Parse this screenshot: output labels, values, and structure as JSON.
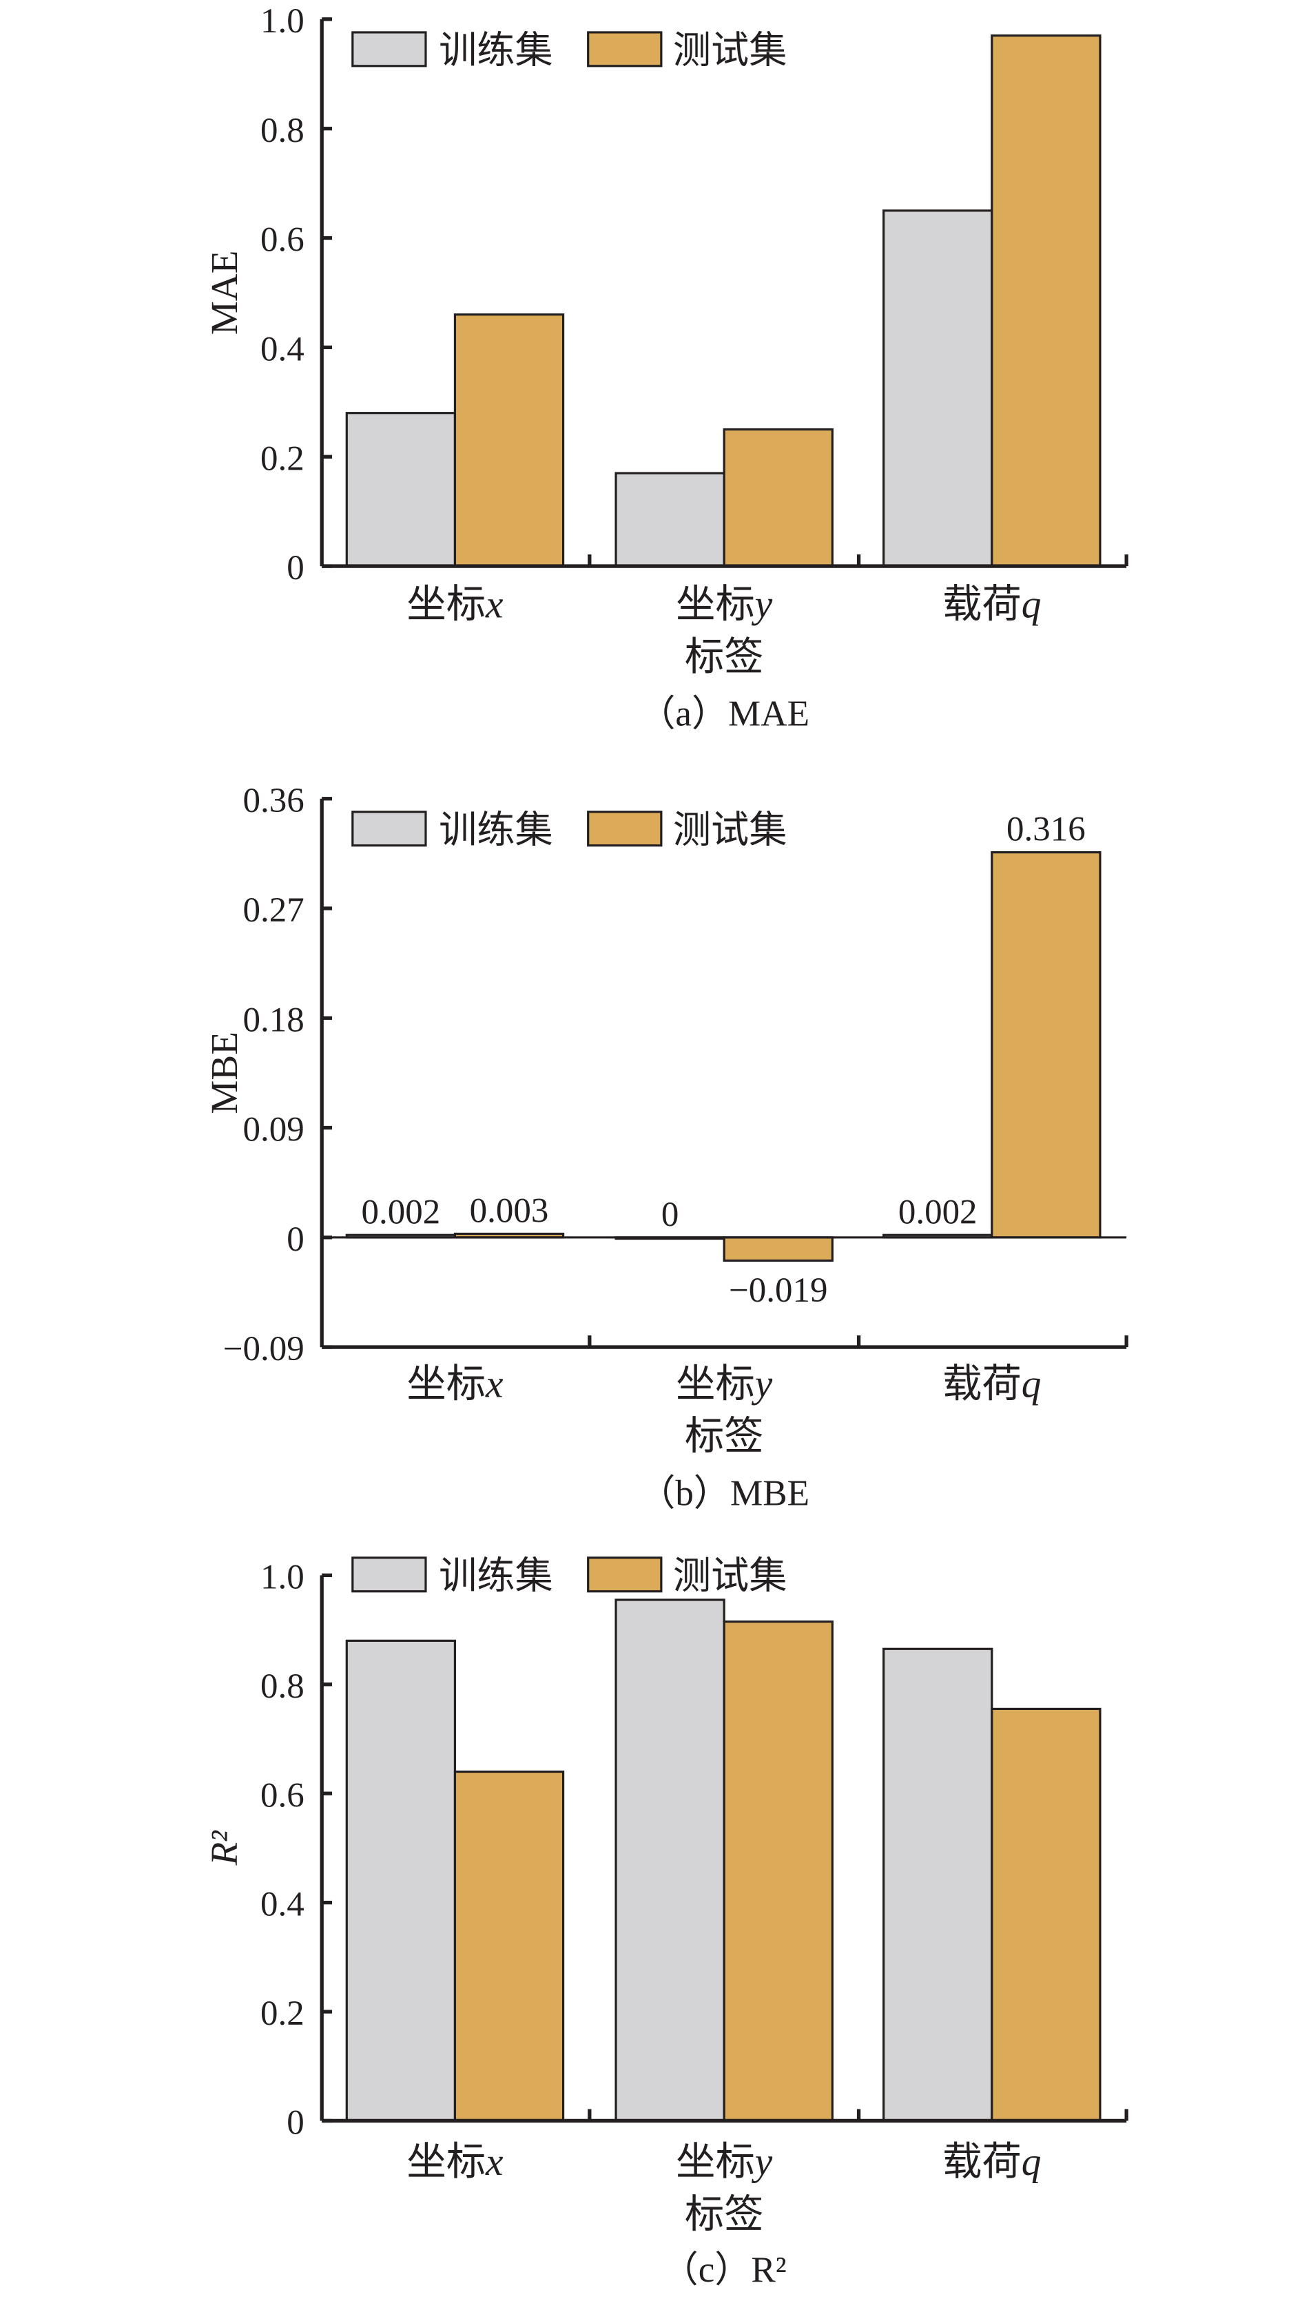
{
  "colors": {
    "train": "#d4d4d6",
    "test": "#dbab5a",
    "stroke": "#231f20"
  },
  "chart_data": [
    {
      "type": "bar",
      "title": "（a）MAE",
      "xlabel": "标签",
      "ylabel": "MAE",
      "categories": [
        "坐标x",
        "坐标y",
        "载荷q"
      ],
      "category_prefix": [
        "坐标",
        "坐标",
        "载荷"
      ],
      "category_var": [
        "x",
        "y",
        "q"
      ],
      "ylim": [
        0,
        1.0
      ],
      "yticks": [
        0,
        0.2,
        0.4,
        0.6,
        0.8,
        1.0
      ],
      "ytick_labels": [
        "0",
        "0.2",
        "0.4",
        "0.6",
        "0.8",
        "1.0"
      ],
      "legend": [
        "训练集",
        "测试集"
      ],
      "legend_position": "top-left",
      "series": [
        {
          "name": "训练集",
          "values": [
            0.28,
            0.17,
            0.65
          ]
        },
        {
          "name": "测试集",
          "values": [
            0.46,
            0.25,
            0.97
          ]
        }
      ]
    },
    {
      "type": "bar",
      "title": "（b）MBE",
      "xlabel": "标签",
      "ylabel": "MBE",
      "categories": [
        "坐标x",
        "坐标y",
        "载荷q"
      ],
      "category_prefix": [
        "坐标",
        "坐标",
        "载荷"
      ],
      "category_var": [
        "x",
        "y",
        "q"
      ],
      "ylim": [
        -0.09,
        0.36
      ],
      "yticks": [
        -0.09,
        0,
        0.09,
        0.18,
        0.27,
        0.36
      ],
      "ytick_labels": [
        "−0.09",
        "0",
        "0.09",
        "0.18",
        "0.27",
        "0.36"
      ],
      "legend": [
        "训练集",
        "测试集"
      ],
      "legend_position": "top-left",
      "series": [
        {
          "name": "训练集",
          "values": [
            0.002,
            0,
            0.002
          ],
          "labels": [
            "0.002",
            "0",
            "0.002"
          ]
        },
        {
          "name": "测试集",
          "values": [
            0.003,
            -0.019,
            0.316
          ],
          "labels": [
            "0.003",
            "−0.019",
            "0.316"
          ]
        }
      ]
    },
    {
      "type": "bar",
      "title": "（c）R²",
      "xlabel": "标签",
      "ylabel": "R²",
      "categories": [
        "坐标x",
        "坐标y",
        "载荷q"
      ],
      "category_prefix": [
        "坐标",
        "坐标",
        "载荷"
      ],
      "category_var": [
        "x",
        "y",
        "q"
      ],
      "ylim": [
        0,
        1.0
      ],
      "yticks": [
        0,
        0.2,
        0.4,
        0.6,
        0.8,
        1.0
      ],
      "ytick_labels": [
        "0",
        "0.2",
        "0.4",
        "0.6",
        "0.8",
        "1.0"
      ],
      "legend": [
        "训练集",
        "测试集"
      ],
      "legend_position": "top-left",
      "series": [
        {
          "name": "训练集",
          "values": [
            0.88,
            0.955,
            0.865
          ]
        },
        {
          "name": "测试集",
          "values": [
            0.64,
            0.915,
            0.755
          ]
        }
      ]
    }
  ]
}
